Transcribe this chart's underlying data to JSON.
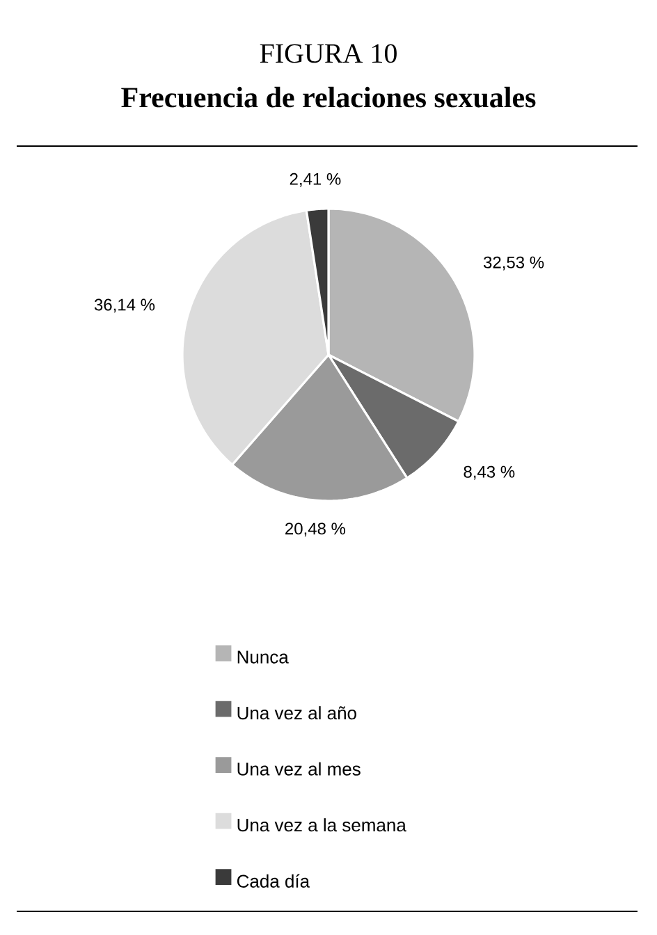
{
  "chart_data": {
    "type": "pie",
    "title": "FIGURA 10",
    "subtitle": "Frecuencia de relaciones sexuales",
    "categories": [
      "Nunca",
      "Una vez al año",
      "Una vez al mes",
      "Una vez a la semana",
      "Cada día"
    ],
    "values": [
      32.53,
      8.43,
      20.48,
      36.14,
      2.41
    ],
    "colors": [
      "#b5b5b5",
      "#6b6b6b",
      "#9a9a9a",
      "#dcdcdc",
      "#3a3a3a"
    ],
    "value_labels": [
      "32,53 %",
      "8,43 %",
      "20,48 %",
      "36,14 %",
      "2,41 %"
    ],
    "legend": "bottom"
  }
}
